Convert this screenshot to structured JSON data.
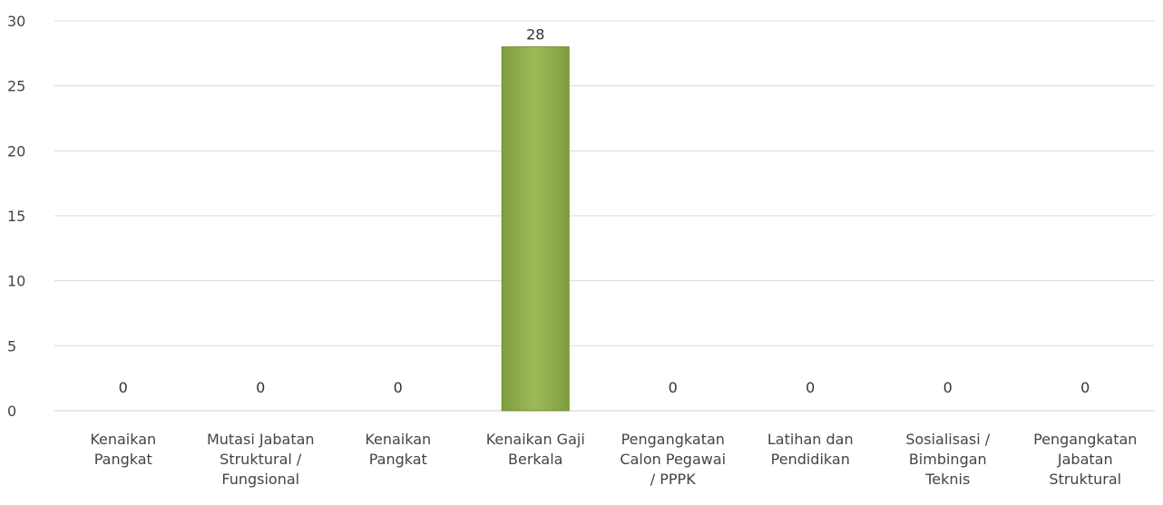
{
  "chart_data": {
    "type": "bar",
    "categories": [
      [
        "Kenaikan",
        "Pangkat"
      ],
      [
        "Mutasi Jabatan",
        "Struktural /",
        "Fungsional"
      ],
      [
        "Kenaikan",
        "Pangkat"
      ],
      [
        "Kenaikan Gaji",
        "Berkala"
      ],
      [
        "Pengangkatan",
        "Calon Pegawai",
        "/ PPPK"
      ],
      [
        "Latihan dan",
        "Pendidikan"
      ],
      [
        "Sosialisasi /",
        "Bimbingan",
        "Teknis"
      ],
      [
        "Pengangkatan",
        "Jabatan",
        "Struktural"
      ]
    ],
    "values": [
      0,
      0,
      0,
      28,
      0,
      0,
      0,
      0
    ],
    "data_labels": [
      "0",
      "0",
      "0",
      "28",
      "0",
      "0",
      "0",
      "0"
    ],
    "yticks": [
      0,
      5,
      10,
      15,
      20,
      25,
      30
    ],
    "ylim": [
      0,
      30
    ],
    "title": "",
    "xlabel": "",
    "ylabel": "",
    "grid": true,
    "legend": "none",
    "bar_color": "#8fae4c",
    "bar_edge_color": "#6f8f35"
  }
}
